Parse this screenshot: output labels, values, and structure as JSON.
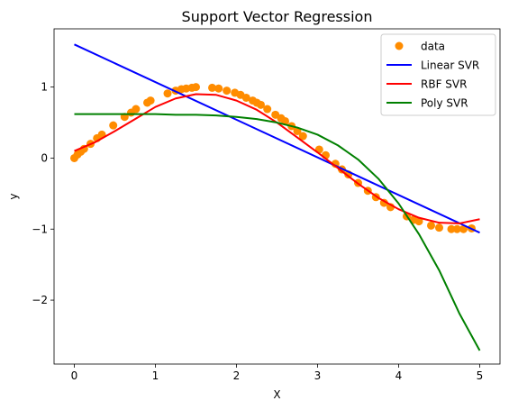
{
  "chart_data": {
    "type": "scatter",
    "title": "Support Vector Regression",
    "xlabel": "X",
    "ylabel": "y",
    "xlim": [
      -0.25,
      5.25
    ],
    "ylim": [
      -2.9,
      1.82
    ],
    "xticks": [
      0,
      1,
      2,
      3,
      4,
      5
    ],
    "yticks": [
      -2,
      -1,
      0,
      1
    ],
    "xtick_labels": [
      "0",
      "1",
      "2",
      "3",
      "4",
      "5"
    ],
    "ytick_labels": [
      "−2",
      "−1",
      "0",
      "1"
    ],
    "grid": false,
    "legend_position": "top-right",
    "series": [
      {
        "name": "data",
        "kind": "scatter",
        "color": "#ff8c00",
        "x": [
          0.0,
          0.04,
          0.08,
          0.12,
          0.2,
          0.28,
          0.34,
          0.48,
          0.62,
          0.7,
          0.76,
          0.9,
          0.94,
          1.15,
          1.25,
          1.32,
          1.38,
          1.45,
          1.5,
          1.7,
          1.78,
          1.88,
          1.98,
          2.05,
          2.12,
          2.2,
          2.25,
          2.3,
          2.38,
          2.48,
          2.55,
          2.6,
          2.68,
          2.75,
          2.82,
          3.02,
          3.1,
          3.22,
          3.3,
          3.38,
          3.5,
          3.62,
          3.72,
          3.82,
          3.9,
          4.1,
          4.18,
          4.25,
          4.4,
          4.5,
          4.65,
          4.72,
          4.8,
          4.9
        ],
        "y": [
          0.0,
          0.05,
          0.09,
          0.13,
          0.2,
          0.28,
          0.33,
          0.46,
          0.58,
          0.64,
          0.69,
          0.78,
          0.81,
          0.91,
          0.95,
          0.97,
          0.98,
          0.99,
          1.0,
          0.99,
          0.98,
          0.95,
          0.92,
          0.89,
          0.85,
          0.81,
          0.78,
          0.75,
          0.69,
          0.61,
          0.56,
          0.52,
          0.45,
          0.38,
          0.31,
          0.12,
          0.04,
          -0.08,
          -0.16,
          -0.23,
          -0.35,
          -0.46,
          -0.55,
          -0.63,
          -0.69,
          -0.82,
          -0.87,
          -0.89,
          -0.95,
          -0.98,
          -1.0,
          -1.0,
          -1.0,
          -0.99
        ]
      },
      {
        "name": "Linear SVR",
        "kind": "line",
        "color": "#0000ff",
        "x": [
          0,
          5
        ],
        "y": [
          1.6,
          -1.05
        ]
      },
      {
        "name": "RBF SVR",
        "kind": "line",
        "color": "#ff0000",
        "x": [
          0.0,
          0.25,
          0.5,
          0.75,
          1.0,
          1.25,
          1.5,
          1.75,
          2.0,
          2.25,
          2.5,
          2.75,
          3.0,
          3.25,
          3.5,
          3.75,
          4.0,
          4.25,
          4.5,
          4.75,
          5.0
        ],
        "y": [
          0.1,
          0.22,
          0.38,
          0.55,
          0.72,
          0.84,
          0.9,
          0.89,
          0.81,
          0.68,
          0.5,
          0.29,
          0.08,
          -0.14,
          -0.36,
          -0.56,
          -0.72,
          -0.84,
          -0.91,
          -0.92,
          -0.86
        ]
      },
      {
        "name": "Poly SVR",
        "kind": "line",
        "color": "#008000",
        "x": [
          0.0,
          0.25,
          0.5,
          0.75,
          1.0,
          1.25,
          1.5,
          1.75,
          2.0,
          2.25,
          2.5,
          2.75,
          3.0,
          3.25,
          3.5,
          3.75,
          4.0,
          4.25,
          4.5,
          4.75,
          5.0
        ],
        "y": [
          0.62,
          0.62,
          0.62,
          0.62,
          0.62,
          0.61,
          0.61,
          0.6,
          0.58,
          0.55,
          0.5,
          0.43,
          0.33,
          0.18,
          -0.02,
          -0.29,
          -0.64,
          -1.07,
          -1.58,
          -2.19,
          -2.71
        ]
      }
    ]
  }
}
